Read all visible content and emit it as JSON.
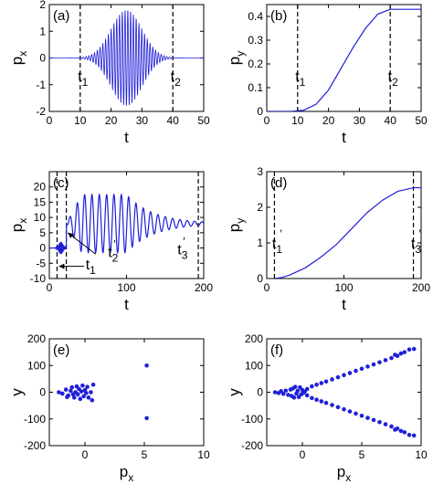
{
  "chart_data": [
    {
      "panel": "(a)",
      "type": "line",
      "xlabel": "t",
      "ylabel": "p",
      "ylabel_sub": "x",
      "xlim": [
        0,
        50
      ],
      "ylim": [
        -2,
        2
      ],
      "xticks": [
        "0",
        "10",
        "20",
        "30",
        "40",
        "50"
      ],
      "yticks": [
        "-2",
        "-1",
        "0",
        "1",
        "2"
      ],
      "xtick_values": [
        0,
        10,
        20,
        30,
        40,
        50
      ],
      "ytick_values": [
        -2,
        -1,
        0,
        1,
        2
      ],
      "series": [
        {
          "kind": "oscillation",
          "envelope_center": 25,
          "envelope_width": 7,
          "peak": 1.8,
          "period": 0.9,
          "values_note": ""
        }
      ],
      "vlines": [
        {
          "x": 10,
          "label": "t",
          "sub": "1",
          "prime": false
        },
        {
          "x": 40,
          "label": "t",
          "sub": "2",
          "prime": false
        }
      ]
    },
    {
      "panel": "(b)",
      "type": "line",
      "xlabel": "t",
      "ylabel": "p",
      "ylabel_sub": "y",
      "xlim": [
        0,
        50
      ],
      "ylim": [
        0,
        0.45
      ],
      "xticks": [
        "0",
        "10",
        "20",
        "30",
        "40",
        "50"
      ],
      "yticks": [
        "0",
        "0.1",
        "0.2",
        "0.3",
        "0.4"
      ],
      "xtick_values": [
        0,
        10,
        20,
        30,
        40,
        50
      ],
      "ytick_values": [
        0,
        0.1,
        0.2,
        0.3,
        0.4
      ],
      "series": [
        {
          "x": [
            0,
            8,
            12,
            16,
            20,
            24,
            28,
            32,
            36,
            40,
            50
          ],
          "y": [
            0,
            0,
            0.005,
            0.03,
            0.09,
            0.18,
            0.27,
            0.35,
            0.41,
            0.43,
            0.43
          ]
        }
      ],
      "vlines": [
        {
          "x": 10,
          "label": "t",
          "sub": "1",
          "prime": false
        },
        {
          "x": 40,
          "label": "t",
          "sub": "2",
          "prime": false
        }
      ]
    },
    {
      "panel": "(c)",
      "type": "line",
      "xlabel": "t",
      "ylabel": "p",
      "ylabel_sub": "x",
      "xlim": [
        0,
        200
      ],
      "ylim": [
        -10,
        25
      ],
      "xticks": [
        "0",
        "100",
        "200"
      ],
      "yticks": [
        "-10",
        "-5",
        "0",
        "5",
        "10",
        "15",
        "20"
      ],
      "xtick_values": [
        0,
        100,
        200
      ],
      "ytick_values": [
        -10,
        -5,
        0,
        5,
        10,
        15,
        20
      ],
      "series": [
        {
          "kind": "damped",
          "start": 22,
          "center": 8,
          "max_amp": 9.5,
          "period": 9.5,
          "decay_start": 100
        }
      ],
      "vlines": [
        {
          "x": 10,
          "label": "",
          "sub": "",
          "prime": false
        },
        {
          "x": 22,
          "label": "",
          "sub": "",
          "prime": false
        },
        {
          "x": 193,
          "label": "",
          "sub": "",
          "prime": false
        }
      ],
      "annotations": [
        {
          "text": "t",
          "sub": "1",
          "prime": false
        },
        {
          "text": "t",
          "sub": "2",
          "prime": true
        },
        {
          "text": "t",
          "sub": "3",
          "prime": true
        }
      ]
    },
    {
      "panel": "(d)",
      "type": "line",
      "xlabel": "t",
      "ylabel": "p",
      "ylabel_sub": "y",
      "xlim": [
        0,
        200
      ],
      "ylim": [
        0,
        3
      ],
      "xticks": [
        "0",
        "100",
        "200"
      ],
      "yticks": [
        "0",
        "1",
        "2",
        "3"
      ],
      "xtick_values": [
        0,
        100,
        200
      ],
      "ytick_values": [
        0,
        1,
        2,
        3
      ],
      "series": [
        {
          "x": [
            10,
            20,
            30,
            50,
            70,
            90,
            110,
            130,
            150,
            170,
            190,
            200
          ],
          "y": [
            0,
            0.03,
            0.1,
            0.3,
            0.6,
            0.95,
            1.4,
            1.85,
            2.2,
            2.45,
            2.55,
            2.55
          ]
        }
      ],
      "vlines": [
        {
          "x": 10,
          "label": "t",
          "sub": "1",
          "prime": true
        },
        {
          "x": 190,
          "label": "t",
          "sub": "3",
          "prime": true
        }
      ]
    },
    {
      "panel": "(e)",
      "type": "scatter",
      "xlabel": "p",
      "xlabel_sub": "x",
      "ylabel": "y",
      "xlim": [
        -3,
        10
      ],
      "ylim": [
        -200,
        200
      ],
      "xticks": [
        "0",
        "5",
        "10"
      ],
      "yticks": [
        "-200",
        "-100",
        "0",
        "100",
        "200"
      ],
      "xtick_values": [
        0,
        5,
        10
      ],
      "ytick_values": [
        -200,
        -100,
        0,
        100,
        200
      ],
      "points": [
        [
          -2.2,
          0
        ],
        [
          -1.9,
          -5
        ],
        [
          -1.6,
          10
        ],
        [
          -1.4,
          -12
        ],
        [
          -1.2,
          5
        ],
        [
          -1.1,
          18
        ],
        [
          -0.9,
          -20
        ],
        [
          -0.8,
          0
        ],
        [
          -0.7,
          22
        ],
        [
          -0.6,
          -8
        ],
        [
          -0.5,
          12
        ],
        [
          -0.4,
          -25
        ],
        [
          -0.3,
          3
        ],
        [
          -0.2,
          25
        ],
        [
          -0.1,
          -15
        ],
        [
          0,
          8
        ],
        [
          0.1,
          -3
        ],
        [
          0.2,
          20
        ],
        [
          0.3,
          -20
        ],
        [
          0.5,
          0
        ],
        [
          0.6,
          -30
        ],
        [
          0.7,
          28
        ],
        [
          -1.5,
          -18
        ],
        [
          -1.0,
          -8
        ],
        [
          5.2,
          100
        ],
        [
          5.2,
          -97
        ]
      ]
    },
    {
      "panel": "(f)",
      "type": "scatter",
      "xlabel": "p",
      "xlabel_sub": "x",
      "ylabel": "y",
      "xlim": [
        -3,
        10
      ],
      "ylim": [
        -200,
        200
      ],
      "xticks": [
        "0",
        "5",
        "10"
      ],
      "yticks": [
        "-200",
        "-100",
        "0",
        "100",
        "200"
      ],
      "xtick_values": [
        0,
        5,
        10
      ],
      "ytick_values": [
        -200,
        -100,
        0,
        100,
        200
      ],
      "points": [
        [
          -2.3,
          0
        ],
        [
          -2.0,
          -3
        ],
        [
          -1.8,
          4
        ],
        [
          -1.6,
          -6
        ],
        [
          -1.4,
          6
        ],
        [
          -1.2,
          -10
        ],
        [
          -1.0,
          10
        ],
        [
          -0.9,
          -14
        ],
        [
          -0.8,
          14
        ],
        [
          -0.7,
          -20
        ],
        [
          -0.6,
          20
        ],
        [
          -0.5,
          -5
        ],
        [
          -0.4,
          5
        ],
        [
          -0.3,
          -18
        ],
        [
          -0.2,
          18
        ],
        [
          -0.1,
          -8
        ],
        [
          0,
          8
        ],
        [
          0.1,
          -2
        ],
        [
          0.2,
          2
        ],
        [
          0.4,
          -12
        ],
        [
          0.4,
          12
        ],
        [
          0.8,
          -22
        ],
        [
          0.8,
          22
        ],
        [
          1.2,
          -28
        ],
        [
          1.2,
          28
        ],
        [
          1.6,
          -34
        ],
        [
          1.6,
          34
        ],
        [
          2.0,
          -40
        ],
        [
          2.0,
          40
        ],
        [
          2.5,
          -48
        ],
        [
          2.5,
          48
        ],
        [
          3.0,
          -56
        ],
        [
          3.0,
          56
        ],
        [
          3.5,
          -64
        ],
        [
          3.5,
          64
        ],
        [
          4.0,
          -72
        ],
        [
          4.0,
          72
        ],
        [
          4.5,
          -80
        ],
        [
          4.5,
          80
        ],
        [
          5.0,
          -88
        ],
        [
          5.0,
          88
        ],
        [
          5.5,
          -96
        ],
        [
          5.5,
          96
        ],
        [
          6.0,
          -104
        ],
        [
          6.0,
          104
        ],
        [
          6.5,
          -112
        ],
        [
          6.5,
          112
        ],
        [
          7.0,
          -120
        ],
        [
          7.0,
          120
        ],
        [
          7.5,
          -128
        ],
        [
          7.5,
          128
        ],
        [
          8.0,
          -136
        ],
        [
          8.0,
          136
        ],
        [
          8.3,
          -145
        ],
        [
          8.3,
          145
        ],
        [
          8.6,
          -150
        ],
        [
          8.6,
          150
        ],
        [
          9.0,
          -160
        ],
        [
          9.0,
          160
        ],
        [
          9.4,
          -162
        ],
        [
          9.4,
          162
        ],
        [
          7.8,
          -140
        ],
        [
          7.8,
          140
        ]
      ]
    }
  ]
}
